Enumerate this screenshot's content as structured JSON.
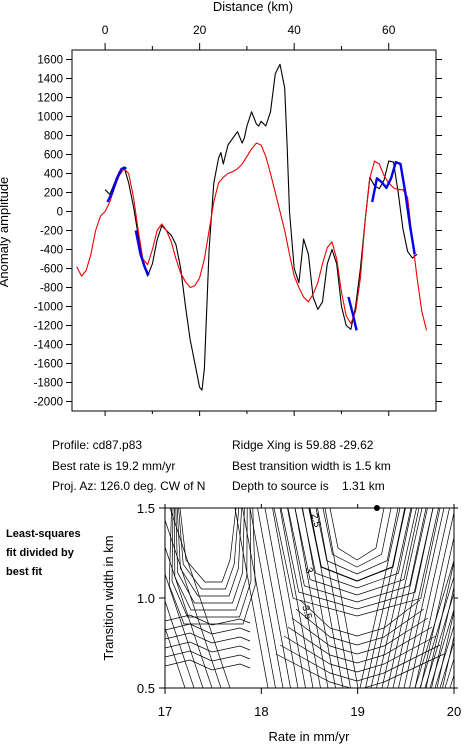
{
  "chart_data": [
    {
      "type": "line",
      "title": "",
      "xlabel": "Distance (km)",
      "ylabel": "Anomaly amplitude",
      "xlim": [
        -7,
        70
      ],
      "ylim": [
        -2100,
        1700
      ],
      "x_ticks": [
        0,
        20,
        40,
        60
      ],
      "y_ticks": [
        -2000,
        -1800,
        -1600,
        -1400,
        -1200,
        -1000,
        -800,
        -600,
        -400,
        -200,
        0,
        200,
        400,
        600,
        800,
        1000,
        1200,
        1400,
        1600
      ],
      "grid": false,
      "series": [
        {
          "color": "#000000",
          "x": [
            0,
            1,
            2,
            3,
            4,
            5,
            6,
            7,
            8,
            9,
            10,
            11,
            12,
            13,
            14,
            15,
            16,
            17,
            18,
            19,
            20,
            20.5,
            21,
            22,
            23,
            24,
            24.5,
            25,
            26,
            27,
            28,
            29,
            29.5,
            30,
            31,
            32,
            32.5,
            33,
            34,
            35,
            36,
            37,
            38,
            38.5,
            39,
            40,
            41,
            42,
            43,
            44,
            45,
            46,
            47,
            48,
            49,
            50,
            51,
            52,
            53,
            54,
            55,
            56,
            57,
            58,
            59,
            60,
            61,
            62,
            63,
            64,
            65,
            66
          ],
          "y": [
            230,
            180,
            300,
            420,
            470,
            300,
            50,
            -250,
            -550,
            -680,
            -550,
            -300,
            -150,
            -200,
            -250,
            -350,
            -600,
            -1000,
            -1350,
            -1600,
            -1850,
            -1880,
            -1650,
            -400,
            300,
            560,
            620,
            500,
            700,
            770,
            840,
            720,
            780,
            900,
            1050,
            920,
            900,
            950,
            900,
            1050,
            1450,
            1550,
            1300,
            700,
            0,
            -600,
            -750,
            -290,
            -450,
            -900,
            -1030,
            -950,
            -550,
            -400,
            -550,
            -1000,
            -1200,
            -1240,
            -1000,
            -600,
            -100,
            360,
            270,
            240,
            330,
            530,
            520,
            200,
            -180,
            -420,
            -490,
            -450
          ]
        },
        {
          "color": "#ee0000",
          "x": [
            -6,
            -5,
            -4,
            -3,
            -2,
            -1,
            0,
            1,
            2,
            3,
            4,
            5,
            6,
            7,
            8,
            9,
            10,
            11,
            12,
            13,
            14,
            15,
            16,
            17,
            18,
            19,
            20,
            21,
            22,
            23,
            24,
            25,
            26,
            27,
            28,
            29,
            30,
            31,
            32,
            33,
            34,
            35,
            36,
            37,
            38,
            39,
            40,
            41,
            42,
            43,
            44,
            45,
            46,
            47,
            48,
            49,
            50,
            51,
            52,
            53,
            54,
            55,
            56,
            57,
            58,
            59,
            60,
            61,
            62,
            63,
            64,
            65,
            66,
            67,
            68
          ],
          "y": [
            -580,
            -680,
            -620,
            -450,
            -200,
            -50,
            0,
            100,
            250,
            380,
            450,
            400,
            150,
            -200,
            -500,
            -560,
            -400,
            -200,
            -130,
            -200,
            -320,
            -500,
            -650,
            -740,
            -800,
            -780,
            -700,
            -500,
            -200,
            100,
            300,
            360,
            400,
            420,
            450,
            500,
            580,
            660,
            720,
            700,
            580,
            400,
            200,
            0,
            -200,
            -450,
            -680,
            -800,
            -900,
            -950,
            -870,
            -750,
            -550,
            -380,
            -320,
            -500,
            -850,
            -1100,
            -1180,
            -1050,
            -700,
            -100,
            350,
            530,
            500,
            380,
            300,
            250,
            230,
            230,
            150,
            -300,
            -700,
            -1050,
            -1250
          ]
        },
        {
          "color": "#0000ee",
          "x": [
            0.5,
            1.5,
            2.5,
            3.5,
            4.5
          ],
          "y": [
            100,
            200,
            350,
            450,
            460
          ]
        },
        {
          "color": "#0000ee",
          "x": [
            6.5,
            7.5,
            8.5,
            9.2
          ],
          "y": [
            -200,
            -450,
            -600,
            -670
          ]
        },
        {
          "color": "#0000ee",
          "x": [
            51.5,
            52.5,
            53.2
          ],
          "y": [
            -900,
            -1100,
            -1250
          ]
        },
        {
          "color": "#0000ee",
          "x": [
            56.5,
            57.5,
            58.5,
            59.5,
            60.5,
            61.5,
            62.5,
            63.5,
            64.5,
            65.5
          ],
          "y": [
            100,
            350,
            310,
            250,
            350,
            520,
            500,
            200,
            -150,
            -450
          ]
        }
      ]
    },
    {
      "type": "contour",
      "xlabel": "Rate in mm/yr",
      "ylabel": "Transition width in km",
      "xlim": [
        17,
        20
      ],
      "ylim": [
        0.5,
        1.5
      ],
      "x_ticks": [
        17,
        18,
        19,
        20
      ],
      "y_ticks": [
        0.5,
        1.0,
        1.5
      ],
      "contour_labels": [
        "2.5",
        "3",
        "3.5"
      ],
      "best_fit_marker": {
        "x": 19.2,
        "y": 1.5
      }
    }
  ],
  "info": {
    "profile": "Profile: cd87.p83",
    "ridge_xing": "Ridge Xing is 59.88 -29.62",
    "best_rate": "Best rate is 19.2 mm/yr",
    "best_transition": "Best transition width is 1.5 km",
    "proj_az": "Proj. Az: 126.0 deg. CW of N",
    "depth": "Depth to source is    1.31 km"
  },
  "note": {
    "line1": "Least-squares",
    "line2": "fit divided by",
    "line3": "best fit"
  }
}
